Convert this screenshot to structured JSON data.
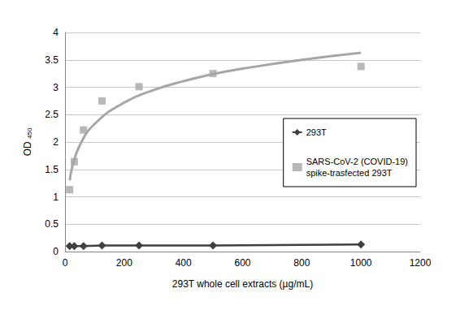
{
  "chart_data": {
    "type": "scatter",
    "xlabel": "293T whole cell extracts (µg/mL)",
    "ylabel": "OD 450",
    "xlim": [
      0,
      1200
    ],
    "xticks": [
      0,
      200,
      400,
      600,
      800,
      1000,
      1200
    ],
    "ylim": [
      0,
      4
    ],
    "yticks": [
      0,
      0.5,
      1,
      1.5,
      2,
      2.5,
      3,
      3.5,
      4
    ],
    "grid": true,
    "legend": "right",
    "series": [
      {
        "name": "293T",
        "type": "line",
        "marker": "diamond",
        "line_style": "solid",
        "color": "#404040",
        "x": [
          15.6,
          31.25,
          62.5,
          125,
          250,
          500,
          1000
        ],
        "values": [
          0.1,
          0.1,
          0.1,
          0.11,
          0.11,
          0.11,
          0.13
        ]
      },
      {
        "name": "SARS-CoV-2 (COVID-19)\nspike-trasfected 293T",
        "type": "scatter",
        "marker": "square",
        "color": "#a6a6a6",
        "x": [
          15.6,
          31.25,
          62.5,
          125,
          250,
          500,
          1000
        ],
        "values": [
          1.13,
          1.64,
          2.22,
          2.75,
          3.01,
          3.25,
          3.38
        ],
        "trend": {
          "x": [
            16,
            25,
            50,
            100,
            200,
            300,
            400,
            500,
            600,
            800,
            1000
          ],
          "values": [
            1.3,
            1.55,
            1.94,
            2.33,
            2.72,
            2.95,
            3.11,
            3.24,
            3.34,
            3.5,
            3.63
          ]
        }
      }
    ]
  }
}
